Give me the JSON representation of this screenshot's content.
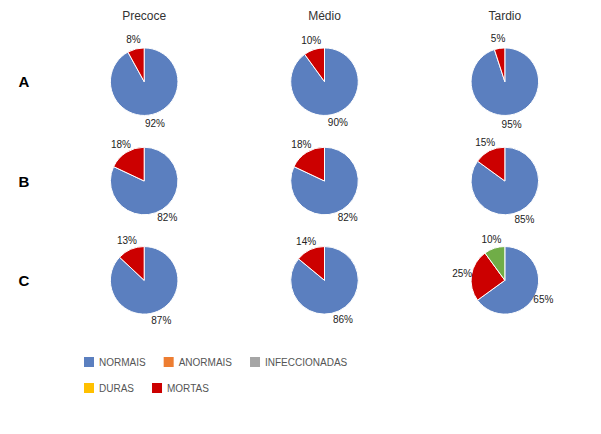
{
  "chart_data": {
    "type": "pie",
    "columns": [
      "Precoce",
      "Médio",
      "Tardio"
    ],
    "rows": [
      "A",
      "B",
      "C"
    ],
    "pies": [
      [
        {
          "values": [
            92,
            8
          ],
          "value_labels": [
            "92%",
            "8%"
          ],
          "colors": [
            "#5B7FBF",
            "#CC0000"
          ]
        },
        {
          "values": [
            90,
            10
          ],
          "value_labels": [
            "90%",
            "10%"
          ],
          "colors": [
            "#5B7FBF",
            "#CC0000"
          ]
        },
        {
          "values": [
            95,
            5
          ],
          "value_labels": [
            "95%",
            "5%"
          ],
          "colors": [
            "#5B7FBF",
            "#CC0000"
          ]
        }
      ],
      [
        {
          "values": [
            82,
            18
          ],
          "value_labels": [
            "82%",
            "18%"
          ],
          "colors": [
            "#5B7FBF",
            "#CC0000"
          ]
        },
        {
          "values": [
            82,
            18
          ],
          "value_labels": [
            "82%",
            "18%"
          ],
          "colors": [
            "#5B7FBF",
            "#CC0000"
          ]
        },
        {
          "values": [
            85,
            15
          ],
          "value_labels": [
            "85%",
            "15%"
          ],
          "colors": [
            "#5B7FBF",
            "#CC0000"
          ]
        }
      ],
      [
        {
          "values": [
            87,
            13
          ],
          "value_labels": [
            "87%",
            "13%"
          ],
          "colors": [
            "#5B7FBF",
            "#CC0000"
          ]
        },
        {
          "values": [
            86,
            14
          ],
          "value_labels": [
            "86%",
            "14%"
          ],
          "colors": [
            "#5B7FBF",
            "#CC0000"
          ]
        },
        {
          "values": [
            65,
            25,
            10
          ],
          "value_labels": [
            "65%",
            "25%",
            "10%"
          ],
          "colors": [
            "#5B7FBF",
            "#CC0000",
            "#70AD47"
          ]
        }
      ]
    ],
    "legend_entries": [
      {
        "name": "NORMAIS",
        "color": "#5B7FBF"
      },
      {
        "name": "ANORMAIS",
        "color": "#ED7D31"
      },
      {
        "name": "INFECCIONADAS",
        "color": "#A5A5A5"
      },
      {
        "name": "DURAS",
        "color": "#FFC000"
      },
      {
        "name": "MORTAS",
        "color": "#CC0000"
      }
    ],
    "legend": "bottom",
    "data_labels": true
  }
}
